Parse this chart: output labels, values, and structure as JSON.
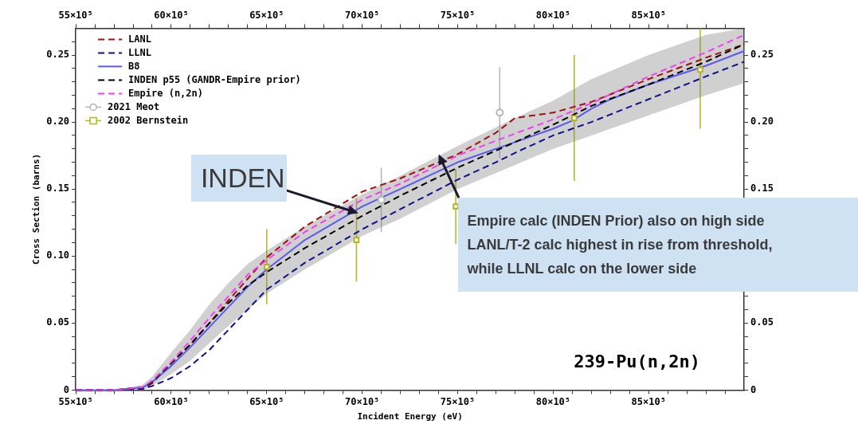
{
  "chart_data": {
    "type": "line",
    "xlabel": "Incident Energy (eV)",
    "ylabel": "Cross Section (barns)",
    "xlim": [
      5500000,
      9000000
    ],
    "ylim": [
      0,
      0.27
    ],
    "x2lim": [
      5500000,
      9000000
    ],
    "y2lim": [
      0,
      0.27
    ],
    "xticks": [
      {
        "value": 5500000,
        "label": "55×10⁵"
      },
      {
        "value": 5600000,
        "label": null
      },
      {
        "value": 5700000,
        "label": null
      },
      {
        "value": 5800000,
        "label": null
      },
      {
        "value": 5900000,
        "label": null
      },
      {
        "value": 6000000,
        "label": "60×10⁵"
      },
      {
        "value": 6100000,
        "label": null
      },
      {
        "value": 6200000,
        "label": null
      },
      {
        "value": 6300000,
        "label": null
      },
      {
        "value": 6400000,
        "label": null
      },
      {
        "value": 6500000,
        "label": "65×10⁵"
      },
      {
        "value": 6600000,
        "label": null
      },
      {
        "value": 6700000,
        "label": null
      },
      {
        "value": 6800000,
        "label": null
      },
      {
        "value": 6900000,
        "label": null
      },
      {
        "value": 7000000,
        "label": "70×10⁵"
      },
      {
        "value": 7100000,
        "label": null
      },
      {
        "value": 7200000,
        "label": null
      },
      {
        "value": 7300000,
        "label": null
      },
      {
        "value": 7400000,
        "label": null
      },
      {
        "value": 7500000,
        "label": "75×10⁵"
      },
      {
        "value": 7600000,
        "label": null
      },
      {
        "value": 7700000,
        "label": null
      },
      {
        "value": 7800000,
        "label": null
      },
      {
        "value": 7900000,
        "label": null
      },
      {
        "value": 8000000,
        "label": "80×10⁵"
      },
      {
        "value": 8100000,
        "label": null
      },
      {
        "value": 8200000,
        "label": null
      },
      {
        "value": 8300000,
        "label": null
      },
      {
        "value": 8400000,
        "label": null
      },
      {
        "value": 8500000,
        "label": "85×10⁵"
      },
      {
        "value": 8600000,
        "label": null
      },
      {
        "value": 8700000,
        "label": null
      },
      {
        "value": 8800000,
        "label": null
      },
      {
        "value": 8900000,
        "label": null
      }
    ],
    "x2ticks": [
      {
        "value": 5500000,
        "label": "55×10⁵"
      },
      {
        "value": 5600000,
        "label": null
      },
      {
        "value": 5700000,
        "label": null
      },
      {
        "value": 5800000,
        "label": null
      },
      {
        "value": 5900000,
        "label": null
      },
      {
        "value": 6000000,
        "label": "60×10⁵"
      },
      {
        "value": 6100000,
        "label": null
      },
      {
        "value": 6200000,
        "label": null
      },
      {
        "value": 6300000,
        "label": null
      },
      {
        "value": 6400000,
        "label": null
      },
      {
        "value": 6500000,
        "label": "65×10⁵"
      },
      {
        "value": 6600000,
        "label": null
      },
      {
        "value": 6700000,
        "label": null
      },
      {
        "value": 6800000,
        "label": null
      },
      {
        "value": 6900000,
        "label": null
      },
      {
        "value": 7000000,
        "label": "70×10⁵"
      },
      {
        "value": 7100000,
        "label": null
      },
      {
        "value": 7200000,
        "label": null
      },
      {
        "value": 7300000,
        "label": null
      },
      {
        "value": 7400000,
        "label": null
      },
      {
        "value": 7500000,
        "label": "75×10⁵"
      },
      {
        "value": 7600000,
        "label": null
      },
      {
        "value": 7700000,
        "label": null
      },
      {
        "value": 7800000,
        "label": null
      },
      {
        "value": 7900000,
        "label": null
      },
      {
        "value": 8000000,
        "label": "80×10⁵"
      },
      {
        "value": 8100000,
        "label": null
      },
      {
        "value": 8200000,
        "label": null
      },
      {
        "value": 8300000,
        "label": null
      },
      {
        "value": 8400000,
        "label": null
      },
      {
        "value": 8500000,
        "label": "85×10⁵"
      },
      {
        "value": 8600000,
        "label": null
      },
      {
        "value": 8700000,
        "label": null
      },
      {
        "value": 8800000,
        "label": null
      },
      {
        "value": 8900000,
        "label": null
      }
    ],
    "yticks": [
      0,
      {
        "value": 0.01,
        "label": null
      },
      {
        "value": 0.02,
        "label": null
      },
      {
        "value": 0.03,
        "label": null
      },
      {
        "value": 0.04,
        "label": null
      },
      0.05,
      {
        "value": 0.06,
        "label": null
      },
      {
        "value": 0.07,
        "label": null
      },
      {
        "value": 0.08,
        "label": null
      },
      {
        "value": 0.09,
        "label": null
      },
      {
        "value": 0.1,
        "label": "0.10"
      },
      {
        "value": 0.11,
        "label": null
      },
      {
        "value": 0.12,
        "label": null
      },
      {
        "value": 0.13,
        "label": null
      },
      {
        "value": 0.14,
        "label": null
      },
      0.15,
      {
        "value": 0.16,
        "label": null
      },
      {
        "value": 0.17,
        "label": null
      },
      {
        "value": 0.18,
        "label": null
      },
      {
        "value": 0.19,
        "label": null
      },
      {
        "value": 0.2,
        "label": "0.20"
      },
      {
        "value": 0.21,
        "label": null
      },
      {
        "value": 0.22,
        "label": null
      },
      {
        "value": 0.23,
        "label": null
      },
      {
        "value": 0.24,
        "label": null
      },
      0.25,
      {
        "value": 0.26,
        "label": null
      }
    ],
    "y2ticks": [
      0,
      {
        "value": 0.01,
        "label": null
      },
      {
        "value": 0.02,
        "label": null
      },
      {
        "value": 0.03,
        "label": null
      },
      {
        "value": 0.04,
        "label": null
      },
      0.05,
      {
        "value": 0.06,
        "label": null
      },
      {
        "value": 0.07,
        "label": null
      },
      {
        "value": 0.08,
        "label": null
      },
      {
        "value": 0.09,
        "label": null
      },
      {
        "value": 0.1,
        "label": null
      },
      {
        "value": 0.11,
        "label": null
      },
      {
        "value": 0.12,
        "label": null
      },
      {
        "value": 0.13,
        "label": null
      },
      {
        "value": 0.14,
        "label": null
      },
      0.15,
      {
        "value": 0.16,
        "label": null
      },
      {
        "value": 0.17,
        "label": null
      },
      {
        "value": 0.18,
        "label": null
      },
      {
        "value": 0.19,
        "label": null
      },
      {
        "value": 0.2,
        "label": "0.20"
      },
      {
        "value": 0.21,
        "label": null
      },
      {
        "value": 0.22,
        "label": null
      },
      {
        "value": 0.23,
        "label": null
      },
      {
        "value": 0.24,
        "label": null
      },
      0.25,
      {
        "value": 0.26,
        "label": null
      }
    ],
    "legend": "top left",
    "series": [
      {
        "name": "LANL",
        "color": "#a01010",
        "line_style": "dashed",
        "marker": "none",
        "x": [
          5500000,
          5700000,
          5850000,
          5900000,
          6000000,
          6100000,
          6200000,
          6300000,
          6400000,
          6500000,
          6700000,
          7000000,
          7200000,
          7500000,
          7700000,
          7800000,
          7900000,
          8000000,
          8200000,
          8500000,
          8800000,
          9000000
        ],
        "values": [
          0,
          0,
          0.001,
          0.005,
          0.02,
          0.034,
          0.05,
          0.067,
          0.083,
          0.099,
          0.122,
          0.148,
          0.158,
          0.176,
          0.192,
          0.203,
          0.205,
          0.207,
          0.215,
          0.232,
          0.248,
          0.258
        ]
      },
      {
        "name": "LLNL",
        "color": "#10108c",
        "line_style": "dashed",
        "marker": "none",
        "x": [
          5500000,
          5700000,
          5850000,
          5900000,
          6000000,
          6100000,
          6200000,
          6300000,
          6400000,
          6500000,
          6700000,
          7000000,
          7200000,
          7500000,
          7700000,
          7800000,
          8000000,
          8200000,
          8500000,
          8800000,
          9000000
        ],
        "values": [
          0,
          0,
          0.001,
          0.003,
          0.009,
          0.018,
          0.03,
          0.045,
          0.06,
          0.075,
          0.095,
          0.12,
          0.135,
          0.157,
          0.17,
          0.177,
          0.19,
          0.2,
          0.217,
          0.234,
          0.245
        ]
      },
      {
        "name": "B8",
        "color": "#5a5af0",
        "line_style": "solid",
        "marker": "none",
        "x": [
          5500000,
          5700000,
          5850000,
          5900000,
          6000000,
          6100000,
          6200000,
          6300000,
          6400000,
          6500000,
          6700000,
          7000000,
          7200000,
          7500000,
          7800000,
          8000000,
          8100000,
          8200000,
          8300000,
          8500000,
          8800000,
          9000000
        ],
        "values": [
          0,
          0,
          0.002,
          0.006,
          0.018,
          0.032,
          0.047,
          0.062,
          0.077,
          0.09,
          0.112,
          0.137,
          0.15,
          0.17,
          0.185,
          0.195,
          0.201,
          0.21,
          0.217,
          0.228,
          0.242,
          0.253
        ]
      },
      {
        "name": "INDEN p55 (GANDR-Empire prior)",
        "color": "#000000",
        "line_style": "dashed",
        "marker": "none",
        "x": [
          5500000,
          5700000,
          5850000,
          5900000,
          6000000,
          6100000,
          6200000,
          6300000,
          6400000,
          6500000,
          6700000,
          7000000,
          7200000,
          7500000,
          7800000,
          8000000,
          8200000,
          8500000,
          8800000,
          9000000
        ],
        "values": [
          0,
          0,
          0.002,
          0.006,
          0.02,
          0.034,
          0.05,
          0.065,
          0.078,
          0.088,
          0.106,
          0.13,
          0.145,
          0.166,
          0.185,
          0.198,
          0.212,
          0.228,
          0.245,
          0.258
        ],
        "lower": [
          0,
          0,
          0,
          0.003,
          0.012,
          0.022,
          0.035,
          0.048,
          0.06,
          0.072,
          0.09,
          0.115,
          0.128,
          0.15,
          0.168,
          0.18,
          0.19,
          0.205,
          0.22,
          0.229
        ],
        "upper": [
          0,
          0,
          0.004,
          0.01,
          0.028,
          0.045,
          0.064,
          0.08,
          0.094,
          0.104,
          0.122,
          0.146,
          0.16,
          0.182,
          0.203,
          0.216,
          0.232,
          0.25,
          0.265,
          0.27
        ]
      },
      {
        "name": "Empire (n,2n)",
        "color": "#f040f0",
        "line_style": "dashed",
        "marker": "none",
        "x": [
          5500000,
          5700000,
          5850000,
          5900000,
          6000000,
          6100000,
          6200000,
          6300000,
          6400000,
          6500000,
          6700000,
          7000000,
          7200000,
          7500000,
          7700000,
          8000000,
          8200000,
          8500000,
          8800000,
          9000000
        ],
        "values": [
          0,
          0,
          0.002,
          0.007,
          0.021,
          0.037,
          0.054,
          0.07,
          0.086,
          0.097,
          0.118,
          0.142,
          0.154,
          0.175,
          0.186,
          0.202,
          0.214,
          0.234,
          0.252,
          0.265
        ]
      },
      {
        "name": "2021 Meot",
        "type": "scatter",
        "color": "#b4b4b4",
        "marker": "circle",
        "x": [
          7100000,
          7720000
        ],
        "values": [
          0.142,
          0.207
        ],
        "errors": [
          0.024,
          0.034
        ]
      },
      {
        "name": "2002 Bernstein",
        "type": "scatter",
        "color": "#b4b41e",
        "marker": "square",
        "x": [
          6500000,
          6970000,
          7490000,
          8110000,
          8770000
        ],
        "values": [
          0.092,
          0.112,
          0.137,
          0.203,
          0.239
        ],
        "errors": [
          0.028,
          0.031,
          0.028,
          0.047,
          [
            0.195,
            0.27
          ]
        ]
      }
    ],
    "annotations": [
      {
        "text": "INDEN",
        "x": 6980000,
        "y": 0.132
      },
      {
        "text": "Empire calc (INDEN Prior) also on high side\nLANL/T-2 calc highest in rise from threshold,\nwhile LLNL calc on the lower side",
        "x": 7400000,
        "y": 0.176
      },
      "239-Pu(n,2n)"
    ]
  }
}
